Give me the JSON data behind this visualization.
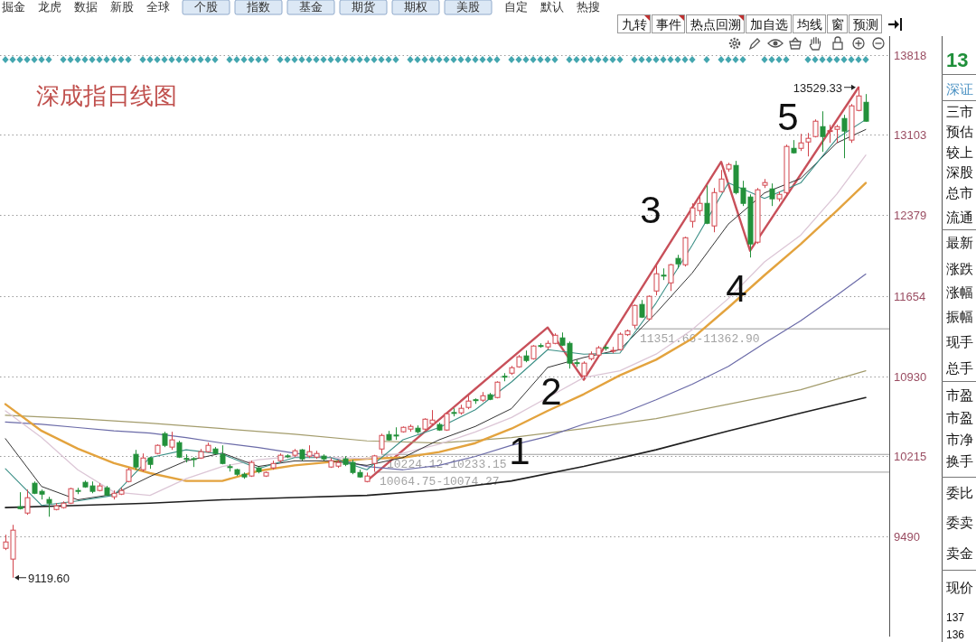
{
  "chart_data": [
    {
      "type": "candlestick",
      "title": "深成指日线图",
      "categories": [
        null,
        null,
        null,
        null,
        null,
        null,
        null,
        null,
        null,
        null,
        null,
        null,
        null,
        null,
        null,
        null,
        null,
        null,
        null,
        null,
        null,
        null,
        null,
        null,
        null,
        null,
        null,
        null,
        null,
        null,
        null,
        null,
        null,
        null,
        null,
        null,
        null,
        null,
        null,
        null,
        null,
        null,
        null,
        null,
        null,
        null,
        null,
        null,
        null,
        null,
        null,
        null,
        null,
        null,
        null,
        null,
        null,
        null,
        null,
        null,
        null,
        null,
        null,
        null,
        null,
        null,
        null,
        null,
        null,
        null,
        null,
        null,
        null,
        null,
        null,
        null,
        null,
        null,
        null,
        null,
        null,
        null,
        null,
        null,
        null,
        null,
        null,
        null,
        null,
        null,
        null,
        null,
        null,
        null,
        null,
        null,
        null,
        null,
        null,
        null,
        null,
        null,
        null,
        null,
        null,
        null,
        null,
        null,
        null,
        null,
        null,
        null,
        null,
        null,
        null,
        null,
        null,
        null,
        null,
        null
      ],
      "ohlc": [
        [
          9384,
          9506,
          9368,
          9441
        ],
        [
          9287,
          9595,
          9119.6,
          9547
        ],
        [
          9758,
          9888,
          9733,
          9741
        ],
        [
          9701,
          9912,
          9685,
          9839
        ],
        [
          9969,
          9985,
          9871,
          9879
        ],
        [
          9896,
          9912,
          9823,
          9871
        ],
        [
          9823,
          9847,
          9668,
          9790
        ],
        [
          9733,
          9790,
          9725,
          9766
        ],
        [
          9750,
          9806,
          9741,
          9790
        ],
        [
          9790,
          9928,
          9782,
          9920
        ],
        [
          9904,
          9928,
          9871,
          9896
        ],
        [
          9977,
          9993,
          9928,
          9936
        ],
        [
          9945,
          9985,
          9879,
          9896
        ],
        [
          9904,
          9969,
          9896,
          9945
        ],
        [
          9928,
          9945,
          9858,
          9863
        ],
        [
          9847,
          9904,
          9823,
          9879
        ],
        [
          9871,
          9928,
          9863,
          9904
        ],
        [
          9985,
          10107,
          9977,
          10091
        ],
        [
          10229,
          10269,
          10091,
          10115
        ],
        [
          10091,
          10237,
          10074,
          10196
        ],
        [
          10196,
          10204,
          10099,
          10139
        ],
        [
          10237,
          10318,
          10229,
          10310
        ],
        [
          10415,
          10432,
          10294,
          10310
        ],
        [
          10294,
          10432,
          10269,
          10359
        ],
        [
          10334,
          10351,
          10196,
          10204
        ],
        [
          10192,
          10229,
          10156,
          10184
        ],
        [
          10190,
          10204,
          10115,
          10182
        ],
        [
          10196,
          10277,
          10188,
          10253
        ],
        [
          10253,
          10334,
          10245,
          10310
        ],
        [
          10277,
          10294,
          10229,
          10237
        ],
        [
          10229,
          10310,
          10139,
          10147
        ],
        [
          10118,
          10139,
          10074,
          10112
        ],
        [
          10091,
          10099,
          10034,
          10050
        ],
        [
          10050,
          10066,
          10009,
          10026
        ],
        [
          10034,
          10172,
          10026,
          10156
        ],
        [
          10107,
          10115,
          10058,
          10074
        ],
        [
          10034,
          10074,
          10026,
          10066
        ],
        [
          10107,
          10172,
          10091,
          10147
        ],
        [
          10172,
          10237,
          10156,
          10221
        ],
        [
          10215,
          10229,
          10196,
          10208
        ],
        [
          10221,
          10277,
          10204,
          10261
        ],
        [
          10269,
          10277,
          10172,
          10188
        ],
        [
          10213,
          10310,
          10196,
          10253
        ],
        [
          10204,
          10261,
          10188,
          10237
        ],
        [
          10213,
          10229,
          10172,
          10188
        ],
        [
          10115,
          10196,
          10107,
          10172
        ],
        [
          10123,
          10180,
          10107,
          10156
        ],
        [
          10188,
          10213,
          10123,
          10139
        ],
        [
          10156,
          10180,
          10050,
          10066
        ],
        [
          10066,
          10091,
          10018,
          10026
        ],
        [
          9985,
          10064.75,
          9977,
          10034
        ],
        [
          10147,
          10224.12,
          10074.27,
          10215
        ],
        [
          10277,
          10415,
          10233.15,
          10399
        ],
        [
          10407,
          10440,
          10351,
          10359
        ],
        [
          10402,
          10472,
          10359,
          10396
        ],
        [
          10432,
          10480,
          10424,
          10472
        ],
        [
          10456,
          10497,
          10432,
          10480
        ],
        [
          10464,
          10489,
          10415,
          10432
        ],
        [
          10456,
          10553,
          10448,
          10545
        ],
        [
          10505,
          10627,
          10497,
          10537
        ],
        [
          10497,
          10513,
          10440,
          10448
        ],
        [
          10448,
          10602,
          10440,
          10594
        ],
        [
          10605,
          10643,
          10570,
          10598
        ],
        [
          10602,
          10675,
          10586,
          10643
        ],
        [
          10651,
          10756,
          10635,
          10708
        ],
        [
          10720,
          10732,
          10683,
          10712
        ],
        [
          10716,
          10789,
          10700,
          10756
        ],
        [
          10765,
          10781,
          10716,
          10724
        ],
        [
          10740,
          10886,
          10732,
          10878
        ],
        [
          10931,
          10959,
          10886,
          10924
        ],
        [
          10959,
          11024,
          10943,
          11008
        ],
        [
          11016,
          11122,
          11008,
          11106
        ],
        [
          11114,
          11162,
          11057,
          11073
        ],
        [
          11089,
          11211,
          11081,
          11203
        ],
        [
          11207,
          11227,
          11187,
          11199
        ],
        [
          11195,
          11252,
          11171,
          11227
        ],
        [
          11227,
          11317,
          11219,
          11300
        ],
        [
          11276,
          11325,
          11203,
          11211
        ],
        [
          11227,
          11244,
          11000,
          11049
        ],
        [
          11053,
          11081,
          11016,
          11045
        ],
        [
          10935,
          11065,
          10903,
          11049
        ],
        [
          11089,
          11154,
          11073,
          11130
        ],
        [
          11122,
          11203,
          11106,
          11187
        ],
        [
          11190,
          11211,
          11162,
          11184
        ],
        [
          11160,
          11195,
          11138,
          11164
        ],
        [
          11171,
          11325,
          11162,
          11309
        ],
        [
          11305,
          11351.66,
          11293,
          11340
        ],
        [
          11390,
          11577,
          11362.9,
          11568
        ],
        [
          11577,
          11617,
          11455,
          11463
        ],
        [
          11447,
          11658,
          11430,
          11650
        ],
        [
          11698,
          11934,
          11658,
          11853
        ],
        [
          11840,
          11901,
          11796,
          11832
        ],
        [
          11771,
          11942,
          11698,
          11934
        ],
        [
          11991,
          12023,
          11901,
          11942
        ],
        [
          11934,
          12186,
          11918,
          12177
        ],
        [
          12324,
          12486,
          12267,
          12445
        ],
        [
          12421,
          12551,
          12380,
          12486
        ],
        [
          12486,
          12648,
          12299,
          12307
        ],
        [
          12283,
          12624,
          12226,
          12583
        ],
        [
          12592,
          12786,
          12583,
          12705
        ],
        [
          12795,
          12851,
          12770,
          12835
        ],
        [
          12827,
          12868,
          12567,
          12583
        ],
        [
          12624,
          12689,
          12462,
          12486
        ],
        [
          12543,
          12567,
          11999,
          12121
        ],
        [
          12137,
          12624,
          12121,
          12608
        ],
        [
          12649,
          12705,
          12624,
          12673
        ],
        [
          12616,
          12665,
          12462,
          12527
        ],
        [
          12527,
          12592,
          12502,
          12567
        ],
        [
          12583,
          13014,
          12567,
          12998
        ],
        [
          12981,
          13055,
          12933,
          12941
        ],
        [
          12981,
          13111,
          12957,
          13030
        ],
        [
          13038,
          13119,
          12908,
          13071
        ],
        [
          13087,
          13241,
          13079,
          13225
        ],
        [
          13176,
          13314,
          12949,
          13087
        ],
        [
          13136,
          13192,
          13030,
          13140
        ],
        [
          13152,
          13192,
          13030,
          13176
        ],
        [
          13249,
          13282,
          12892,
          13136
        ],
        [
          13055,
          13379,
          13030,
          13363
        ],
        [
          13322,
          13529.33,
          13314,
          13452
        ],
        [
          13395,
          13469,
          13220,
          13225
        ]
      ],
      "colors": [
        "#d2444c",
        "#d2444c",
        "#23913b",
        "#d2444c",
        "#23913b",
        "#23913b",
        "#23913b",
        "#d2444c",
        "#d2444c",
        "#d2444c",
        "#23913b",
        "#23913b",
        "#23913b",
        "#d2444c",
        "#23913b",
        "#d2444c",
        "#d2444c",
        "#d2444c",
        "#23913b",
        "#d2444c",
        "#23913b",
        "#d2444c",
        "#23913b",
        "#d2444c",
        "#23913b",
        "#23913b",
        "#23913b",
        "#d2444c",
        "#d2444c",
        "#23913b",
        "#23913b",
        "#23913b",
        "#23913b",
        "#23913b",
        "#d2444c",
        "#23913b",
        "#d2444c",
        "#d2444c",
        "#d2444c",
        "#23913b",
        "#d2444c",
        "#23913b",
        "#d2444c",
        "#d2444c",
        "#23913b",
        "#d2444c",
        "#d2444c",
        "#23913b",
        "#23913b",
        "#23913b",
        "#d2444c",
        "#d2444c",
        "#d2444c",
        "#23913b",
        "#23913b",
        "#d2444c",
        "#d2444c",
        "#23913b",
        "#d2444c",
        "#d2444c",
        "#23913b",
        "#d2444c",
        "#23913b",
        "#d2444c",
        "#d2444c",
        "#23913b",
        "#d2444c",
        "#23913b",
        "#d2444c",
        "#23913b",
        "#d2444c",
        "#d2444c",
        "#23913b",
        "#d2444c",
        "#23913b",
        "#d2444c",
        "#d2444c",
        "#23913b",
        "#23913b",
        "#23913b",
        "#d2444c",
        "#d2444c",
        "#d2444c",
        "#23913b",
        "#d2444c",
        "#d2444c",
        "#d2444c",
        "#d2444c",
        "#23913b",
        "#d2444c",
        "#d2444c",
        "#23913b",
        "#d2444c",
        "#23913b",
        "#d2444c",
        "#d2444c",
        "#d2444c",
        "#23913b",
        "#d2444c",
        "#d2444c",
        "#d2444c",
        "#23913b",
        "#23913b",
        "#23913b",
        "#d2444c",
        "#d2444c",
        "#23913b",
        "#d2444c",
        "#d2444c",
        "#23913b",
        "#d2444c",
        "#d2444c",
        "#d2444c",
        "#23913b",
        "#d2444c",
        "#d2444c",
        "#23913b",
        "#d2444c",
        "#d2444c",
        "#23913b"
      ],
      "ylim": [
        8590,
        13990
      ],
      "yticks": [
        9490,
        10215,
        10930,
        11654,
        12379,
        13103,
        13818
      ],
      "grid": "y",
      "tick_labels": "y",
      "series": [
        {
          "type": "line",
          "color": "#c8505a",
          "values": [
            null,
            null,
            null,
            null,
            null,
            null,
            null,
            null,
            null,
            null,
            null,
            null,
            null,
            null,
            null,
            null,
            null,
            null,
            null,
            null,
            null,
            null,
            null,
            null,
            null,
            null,
            null,
            null,
            null,
            null,
            null,
            null,
            null,
            null,
            null,
            null,
            null,
            null,
            null,
            null,
            null,
            null,
            null,
            null,
            null,
            null,
            null,
            null,
            null,
            null,
            9990,
            null,
            null,
            null,
            null,
            null,
            null,
            null,
            null,
            null,
            null,
            null,
            null,
            null,
            null,
            null,
            null,
            null,
            null,
            null,
            null,
            null,
            null,
            null,
            null,
            11370,
            null,
            null,
            null,
            null,
            10900,
            null,
            null,
            null,
            null,
            null,
            null,
            null,
            null,
            null,
            null,
            null,
            null,
            null,
            null,
            null,
            null,
            null,
            null,
            12860,
            null,
            null,
            null,
            12060,
            null,
            null,
            null,
            null,
            null,
            null,
            null,
            null,
            null,
            null,
            null,
            null,
            null,
            null,
            13529.33,
            null
          ]
        },
        {
          "type": "line",
          "color": "#1e1e1e",
          "values": [
            9750,
            null,
            null,
            null,
            null,
            null,
            null,
            null,
            null,
            null,
            9770,
            null,
            null,
            null,
            null,
            null,
            null,
            null,
            null,
            null,
            9790,
            null,
            null,
            null,
            null,
            null,
            null,
            null,
            null,
            null,
            9820,
            null,
            null,
            null,
            null,
            null,
            null,
            null,
            null,
            null,
            9840,
            null,
            null,
            null,
            null,
            null,
            null,
            null,
            null,
            null,
            9860,
            null,
            null,
            null,
            null,
            null,
            null,
            null,
            null,
            null,
            9910,
            null,
            null,
            null,
            null,
            null,
            null,
            null,
            null,
            null,
            9990,
            null,
            null,
            null,
            null,
            null,
            null,
            null,
            null,
            null,
            10120,
            null,
            null,
            null,
            null,
            null,
            null,
            null,
            null,
            null,
            10270,
            null,
            null,
            null,
            null,
            null,
            null,
            null,
            null,
            null,
            10440,
            null,
            null,
            null,
            null,
            null,
            null,
            null,
            null,
            null,
            10600,
            null,
            null,
            null,
            null,
            null,
            null,
            null,
            null,
            10740
          ]
        },
        {
          "type": "line",
          "color": "#a39c6c",
          "values": [
            10580,
            null,
            null,
            null,
            null,
            null,
            null,
            null,
            null,
            null,
            10550,
            null,
            null,
            null,
            null,
            null,
            null,
            null,
            null,
            null,
            10510,
            null,
            null,
            null,
            null,
            null,
            null,
            null,
            null,
            null,
            10460,
            null,
            null,
            null,
            null,
            null,
            null,
            null,
            null,
            null,
            10410,
            null,
            null,
            null,
            null,
            null,
            null,
            null,
            null,
            null,
            10350,
            null,
            null,
            null,
            null,
            null,
            null,
            null,
            null,
            null,
            10330,
            null,
            null,
            null,
            null,
            null,
            null,
            null,
            null,
            null,
            10380,
            null,
            null,
            null,
            null,
            null,
            null,
            null,
            null,
            null,
            10460,
            null,
            null,
            null,
            null,
            null,
            null,
            null,
            null,
            null,
            10550,
            null,
            null,
            null,
            null,
            null,
            null,
            null,
            null,
            null,
            10680,
            null,
            null,
            null,
            null,
            null,
            null,
            null,
            null,
            null,
            10810,
            null,
            null,
            null,
            null,
            null,
            null,
            null,
            null,
            10980
          ]
        },
        {
          "type": "line",
          "color": "#6b6ba8",
          "values": [
            10520,
            null,
            null,
            null,
            null,
            10500,
            null,
            null,
            null,
            null,
            10470,
            null,
            null,
            null,
            null,
            10440,
            null,
            null,
            null,
            null,
            10420,
            null,
            null,
            null,
            null,
            10380,
            null,
            null,
            null,
            null,
            10330,
            null,
            null,
            null,
            null,
            10290,
            null,
            null,
            null,
            null,
            10240,
            null,
            null,
            null,
            null,
            10200,
            null,
            null,
            null,
            null,
            10120,
            null,
            null,
            null,
            null,
            10090,
            null,
            null,
            null,
            null,
            10130,
            null,
            null,
            null,
            null,
            10210,
            null,
            null,
            null,
            null,
            10310,
            null,
            null,
            null,
            null,
            10390,
            null,
            null,
            null,
            null,
            10500,
            null,
            null,
            null,
            null,
            10590,
            null,
            null,
            null,
            null,
            10720,
            null,
            null,
            null,
            null,
            10860,
            null,
            null,
            null,
            null,
            11020,
            null,
            null,
            null,
            null,
            11230,
            null,
            null,
            null,
            null,
            11430,
            null,
            null,
            null,
            null,
            11660,
            null,
            null,
            null,
            11850
          ]
        },
        {
          "type": "line",
          "color": "#e3a33e",
          "values": [
            10680,
            null,
            null,
            null,
            null,
            10440,
            null,
            null,
            null,
            null,
            10280,
            null,
            null,
            null,
            null,
            10150,
            null,
            null,
            null,
            null,
            10060,
            null,
            null,
            null,
            null,
            9990,
            null,
            null,
            null,
            null,
            9990,
            null,
            null,
            null,
            null,
            10080,
            null,
            null,
            null,
            null,
            10130,
            null,
            null,
            null,
            null,
            10160,
            null,
            null,
            null,
            null,
            10190,
            null,
            null,
            null,
            null,
            10200,
            null,
            null,
            null,
            null,
            10250,
            null,
            null,
            null,
            null,
            10330,
            null,
            null,
            null,
            null,
            10460,
            null,
            null,
            null,
            null,
            10620,
            null,
            null,
            null,
            null,
            10770,
            null,
            null,
            null,
            null,
            10940,
            null,
            null,
            null,
            null,
            11080,
            null,
            null,
            null,
            null,
            11270,
            null,
            null,
            null,
            null,
            11550,
            null,
            null,
            null,
            null,
            11840,
            null,
            null,
            null,
            null,
            12120,
            null,
            null,
            null,
            null,
            12420,
            null,
            null,
            null,
            12670
          ]
        },
        {
          "type": "line",
          "color": "#dcc6d6",
          "values": [
            10620,
            null,
            null,
            null,
            null,
            10380,
            null,
            null,
            null,
            null,
            10090,
            null,
            null,
            null,
            null,
            9890,
            null,
            null,
            null,
            null,
            9860,
            null,
            null,
            null,
            null,
            10010,
            null,
            null,
            null,
            null,
            10120,
            null,
            null,
            null,
            null,
            10180,
            null,
            null,
            null,
            null,
            10210,
            null,
            null,
            null,
            null,
            10200,
            null,
            null,
            null,
            null,
            10190,
            null,
            null,
            null,
            null,
            10240,
            null,
            null,
            null,
            null,
            10320,
            null,
            null,
            null,
            null,
            10430,
            null,
            null,
            null,
            null,
            10560,
            null,
            null,
            null,
            null,
            10740,
            null,
            null,
            null,
            null,
            10920,
            null,
            null,
            null,
            null,
            10980,
            null,
            null,
            null,
            null,
            11130,
            null,
            null,
            null,
            null,
            11350,
            null,
            null,
            null,
            null,
            11630,
            null,
            null,
            null,
            null,
            11960,
            null,
            null,
            null,
            null,
            12200,
            null,
            null,
            null,
            null,
            12570,
            null,
            null,
            null,
            12920
          ]
        },
        {
          "type": "line",
          "color": "#333333",
          "values": [
            10370,
            null,
            null,
            null,
            null,
            9940,
            null,
            null,
            null,
            null,
            9820,
            null,
            null,
            null,
            null,
            9870,
            null,
            null,
            null,
            null,
            10030,
            null,
            null,
            null,
            null,
            10170,
            null,
            null,
            null,
            null,
            10240,
            null,
            null,
            null,
            null,
            10120,
            null,
            null,
            null,
            null,
            10170,
            null,
            null,
            null,
            null,
            10170,
            null,
            null,
            null,
            null,
            10130,
            null,
            null,
            null,
            null,
            10200,
            null,
            null,
            null,
            null,
            10360,
            null,
            null,
            null,
            null,
            10480,
            null,
            null,
            null,
            null,
            10640,
            null,
            null,
            null,
            null,
            11010,
            null,
            null,
            null,
            null,
            11100,
            null,
            null,
            null,
            null,
            11170,
            null,
            null,
            null,
            null,
            11500,
            null,
            null,
            null,
            null,
            11860,
            null,
            null,
            null,
            null,
            12300,
            null,
            null,
            null,
            null,
            12580,
            null,
            null,
            null,
            null,
            12710,
            null,
            null,
            null,
            null,
            13030,
            null,
            null,
            null,
            13150
          ]
        },
        {
          "type": "line",
          "color": "#3b8f86",
          "values": [
            10100,
            null,
            null,
            null,
            null,
            9770,
            null,
            null,
            null,
            null,
            9810,
            null,
            null,
            null,
            null,
            9860,
            null,
            null,
            null,
            null,
            10200,
            null,
            null,
            null,
            null,
            10270,
            null,
            null,
            null,
            null,
            10230,
            null,
            null,
            null,
            null,
            10100,
            null,
            null,
            null,
            null,
            10200,
            null,
            null,
            null,
            null,
            10200,
            null,
            null,
            null,
            null,
            10090,
            null,
            null,
            null,
            null,
            10360,
            null,
            null,
            null,
            null,
            10470,
            null,
            null,
            null,
            null,
            10630,
            null,
            null,
            null,
            null,
            10880,
            null,
            null,
            null,
            null,
            11170,
            null,
            null,
            null,
            null,
            11130,
            null,
            null,
            null,
            null,
            11140,
            null,
            null,
            null,
            null,
            11590,
            null,
            null,
            null,
            null,
            12110,
            null,
            null,
            null,
            null,
            12670,
            null,
            null,
            null,
            null,
            12530,
            null,
            null,
            null,
            null,
            12670,
            null,
            null,
            null,
            null,
            13070,
            null,
            null,
            null,
            13240
          ]
        }
      ],
      "bands": [
        {
          "axis": "y",
          "from": 10064.75,
          "to": 10074.27,
          "label": "10064.75-10074.27",
          "color": "#b4b4b4"
        },
        {
          "axis": "y",
          "from": 10224.12,
          "to": 10233.15,
          "label": "10224.12-10233.15",
          "color": "#b4b4b4"
        },
        {
          "axis": "y",
          "from": 11351.66,
          "to": 11362.9,
          "label": "11351.66-11362.90",
          "color": "#b4b4b4"
        }
      ],
      "annotations": [
        "1",
        "2",
        "3",
        "4",
        "5",
        "13529.33",
        "9119.60"
      ]
    },
    {
      "type": "other",
      "annotations": [
        "掘金",
        "龙虎",
        "数据",
        "新股",
        "全球",
        "个股",
        "指数",
        "基金",
        "期货",
        "期权",
        "美股",
        "自定",
        "默认",
        "热搜"
      ]
    },
    {
      "type": "other",
      "annotations": [
        "九转",
        "事件",
        "热点回溯",
        "加自选",
        "均线",
        "窗",
        "预测"
      ]
    },
    {
      "type": "other",
      "annotations": [
        "13",
        "深证",
        "三市",
        "预估",
        "较上",
        "深股",
        "总市",
        "流通",
        "最新",
        "涨跌",
        "涨幅",
        "振幅",
        "现手",
        "总手",
        "市盈",
        "市盈",
        "市净",
        "换手",
        "委比",
        "委卖",
        "卖金",
        "现价",
        "137",
        "136"
      ]
    }
  ]
}
